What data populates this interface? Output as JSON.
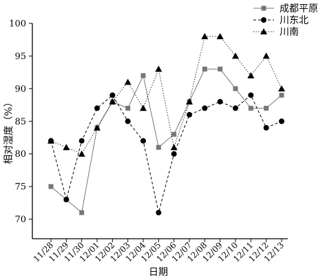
{
  "chart_data": {
    "type": "line",
    "xlabel": "日期",
    "ylabel": "相对湿度（%）",
    "ylim": [
      67,
      100
    ],
    "yticks": [
      70,
      75,
      80,
      85,
      90,
      95,
      100
    ],
    "categories": [
      "11/28",
      "11/29",
      "11/30",
      "12/01",
      "12/02",
      "12/03",
      "12/04",
      "12/05",
      "12/06",
      "12/07",
      "12/08",
      "12/09",
      "12/10",
      "12/11",
      "12/12",
      "12/13"
    ],
    "legend_position": "top-right",
    "grid": false,
    "series": [
      {
        "name": "成都平原",
        "marker": "square",
        "line_style": "solid",
        "color": "#777777",
        "values": [
          75,
          73,
          71,
          84,
          88,
          87,
          92,
          81,
          83,
          88,
          93,
          93,
          90,
          87,
          87,
          89
        ]
      },
      {
        "name": "川东北",
        "marker": "circle",
        "line_style": "dashed",
        "color": "#000000",
        "values": [
          82,
          73,
          82,
          87,
          89,
          85,
          82,
          71,
          80,
          86,
          87,
          88,
          87,
          89,
          84,
          85
        ]
      },
      {
        "name": "川南",
        "marker": "triangle",
        "line_style": "dotted",
        "color": "#000000",
        "values": [
          82,
          81,
          80,
          84,
          88,
          91,
          87,
          93,
          81,
          88,
          98,
          98,
          95,
          92,
          95,
          90
        ]
      }
    ]
  }
}
